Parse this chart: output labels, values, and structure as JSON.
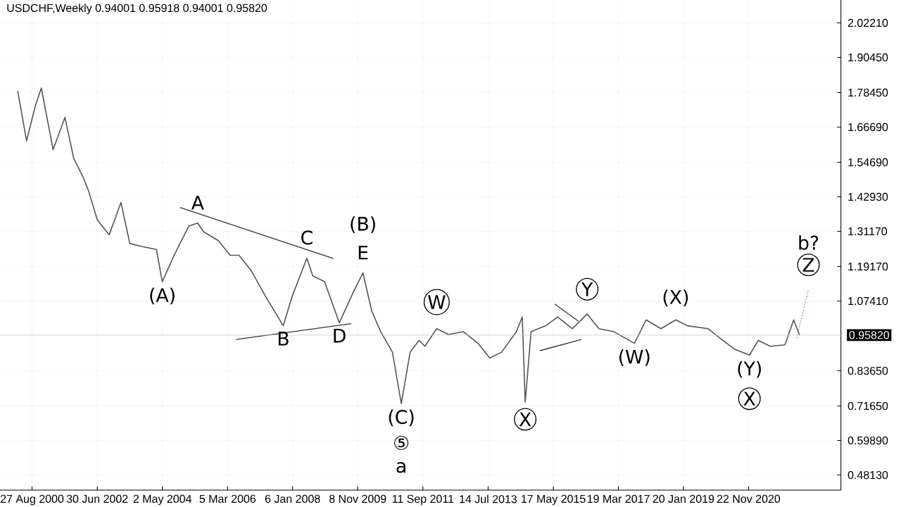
{
  "chart_data": {
    "type": "line",
    "title": "USDCHF,Weekly  0.94001 0.95918 0.94001 0.95820",
    "xlim": [
      "1999-10",
      "2023-07"
    ],
    "ylim": [
      0.43,
      2.1
    ],
    "xticks": [
      {
        "value": "2000-08-27",
        "label": "27 Aug 2000"
      },
      {
        "value": "2002-06-30",
        "label": "30 Jun 2002"
      },
      {
        "value": "2004-05-02",
        "label": "2 May 2004"
      },
      {
        "value": "2006-03-05",
        "label": "5 Mar 2006"
      },
      {
        "value": "2008-01-06",
        "label": "6 Jan 2008"
      },
      {
        "value": "2009-11-08",
        "label": "8 Nov 2009"
      },
      {
        "value": "2011-09-11",
        "label": "11 Sep 2011"
      },
      {
        "value": "2013-07-14",
        "label": "14 Jul 2013"
      },
      {
        "value": "2015-05-17",
        "label": "17 May 2015"
      },
      {
        "value": "2017-03-19",
        "label": "19 Mar 2017"
      },
      {
        "value": "2019-01-20",
        "label": "20 Jan 2019"
      },
      {
        "value": "2020-11-22",
        "label": "22 Nov 2020"
      }
    ],
    "yticks": [
      {
        "value": 0.4813,
        "label": "0.48130"
      },
      {
        "value": 0.5989,
        "label": "0.59890"
      },
      {
        "value": 0.7165,
        "label": "0.71650"
      },
      {
        "value": 0.8365,
        "label": "0.83650"
      },
      {
        "value": 1.0741,
        "label": "1.07410"
      },
      {
        "value": 1.1917,
        "label": "1.19170"
      },
      {
        "value": 1.3117,
        "label": "1.31170"
      },
      {
        "value": 1.4293,
        "label": "1.42930"
      },
      {
        "value": 1.5469,
        "label": "1.54690"
      },
      {
        "value": 1.6669,
        "label": "1.66690"
      },
      {
        "value": 1.7845,
        "label": "1.78450"
      },
      {
        "value": 1.9045,
        "label": "1.90450"
      },
      {
        "value": 2.0221,
        "label": "2.02210"
      }
    ],
    "grid": true,
    "marker": "none",
    "ref_lines": [
      {
        "axis": "y",
        "value": 0.9582,
        "label": "0.95820",
        "color": "#c8c8c8"
      }
    ],
    "series": [
      {
        "color": "#555555",
        "x": [
          "2000-04",
          "2000-07",
          "2000-10",
          "2000-12",
          "2001-04",
          "2001-08",
          "2001-11",
          "2002-02",
          "2002-04",
          "2002-07",
          "2002-11",
          "2003-03",
          "2003-06",
          "2003-10",
          "2004-03",
          "2004-05",
          "2004-09",
          "2005-02",
          "2005-05",
          "2005-07",
          "2005-12",
          "2006-04",
          "2006-07",
          "2006-11",
          "2007-04",
          "2007-10",
          "2008-01",
          "2008-06",
          "2008-08",
          "2008-12",
          "2009-05",
          "2009-10",
          "2010-01",
          "2010-04",
          "2010-07",
          "2010-11",
          "2011-02",
          "2011-05",
          "2011-08",
          "2011-10",
          "2012-02",
          "2012-06",
          "2012-11",
          "2013-04",
          "2013-08",
          "2013-12",
          "2014-05",
          "2014-07",
          "2014-08",
          "2014-10",
          "2015-03",
          "2015-07",
          "2015-12",
          "2016-05",
          "2016-09",
          "2017-02",
          "2017-09",
          "2018-01",
          "2018-06",
          "2018-11",
          "2019-03",
          "2019-10",
          "2020-03",
          "2020-07",
          "2020-12",
          "2021-03",
          "2021-07",
          "2021-12",
          "2022-03",
          "2022-05"
        ],
        "values": [
          1.79,
          1.62,
          1.74,
          1.8,
          1.59,
          1.7,
          1.56,
          1.5,
          1.45,
          1.35,
          1.3,
          1.41,
          1.27,
          1.26,
          1.25,
          1.14,
          1.23,
          1.33,
          1.34,
          1.31,
          1.28,
          1.23,
          1.23,
          1.18,
          1.09,
          0.99,
          1.09,
          1.22,
          1.16,
          1.14,
          1.0,
          1.11,
          1.17,
          1.04,
          0.97,
          0.9,
          0.725,
          0.9,
          0.94,
          0.92,
          0.98,
          0.96,
          0.97,
          0.93,
          0.88,
          0.9,
          0.97,
          1.02,
          0.73,
          0.97,
          0.99,
          1.02,
          0.98,
          1.03,
          0.98,
          0.97,
          0.93,
          1.01,
          0.98,
          1.01,
          0.99,
          0.98,
          0.94,
          0.91,
          0.89,
          0.94,
          0.92,
          0.925,
          1.01,
          0.958
        ]
      },
      {
        "color": "#333333",
        "x": [
          "2004-11",
          "2009-03"
        ],
        "values": [
          1.393,
          1.219
        ]
      },
      {
        "color": "#333333",
        "x": [
          "2006-06",
          "2009-09"
        ],
        "values": [
          0.943,
          0.997
        ]
      },
      {
        "color": "#333333",
        "x": [
          "2015-06",
          "2016-02"
        ],
        "values": [
          1.064,
          1.006
        ]
      },
      {
        "color": "#333333",
        "x": [
          "2015-01",
          "2016-03"
        ],
        "values": [
          0.905,
          0.943
        ]
      },
      {
        "color": "#c05050",
        "line_style": "dotted",
        "x": [
          "2022-04",
          "2022-08"
        ],
        "values": [
          0.948,
          1.113
        ]
      }
    ],
    "annotations": [
      {
        "text": "A",
        "x": "2005-05",
        "y": 1.34
      },
      {
        "text": "B",
        "x": "2007-10",
        "y": 0.99
      },
      {
        "text": "C",
        "x": "2008-06",
        "y": 1.22
      },
      {
        "text": "D",
        "x": "2009-05",
        "y": 1.0
      },
      {
        "text": "(B)",
        "x": "2010-01",
        "y": 1.17
      },
      {
        "text": "E",
        "x": "2010-01",
        "y": 1.17
      },
      {
        "text": "(A)",
        "x": "2004-05",
        "y": 1.14
      },
      {
        "text": "(C)",
        "x": "2011-02",
        "y": 0.725
      },
      {
        "text": "⑤",
        "x": "2011-02",
        "y": 0.725
      },
      "a",
      {
        "text": "W",
        "x": "2012-02",
        "y": 0.98
      },
      {
        "text": "X",
        "x": "2014-08",
        "y": 0.73
      },
      {
        "text": "Y",
        "x": "2016-05",
        "y": 1.03
      },
      {
        "text": "(W)",
        "x": "2017-09",
        "y": 0.93
      },
      {
        "text": "(X)",
        "x": "2018-11",
        "y": 1.01
      },
      {
        "text": "(Y)",
        "x": "2020-12",
        "y": 0.89
      },
      {
        "text": "X",
        "x": "2020-12",
        "y": 0.89
      },
      {
        "text": "b?",
        "x": "2022-08",
        "y": 1.113
      },
      {
        "text": "Z",
        "x": "2022-08",
        "y": 1.113
      }
    ]
  }
}
